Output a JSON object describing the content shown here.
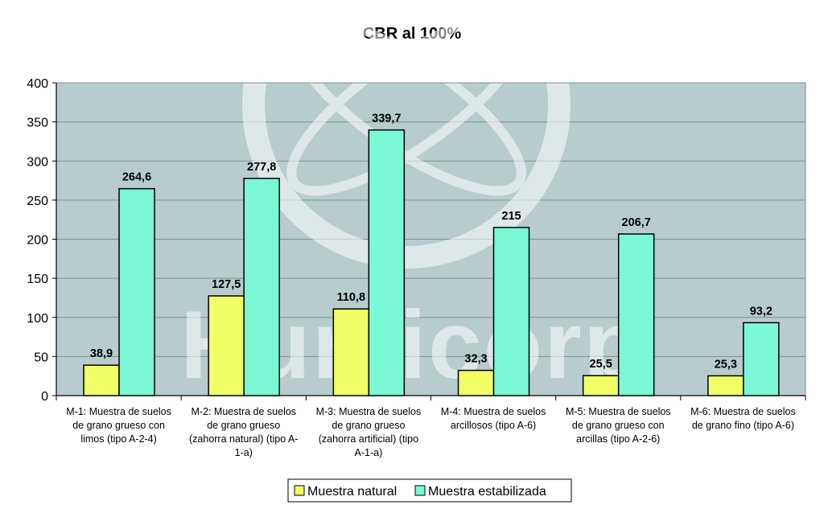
{
  "colors": {
    "plot_bg": "#b8ccce",
    "grid": "#7f8f91",
    "natural": "#f0ff66",
    "estabilizada": "#7af8d6",
    "bar_stroke": "#000000",
    "watermark": "#ffffff"
  },
  "watermark": {
    "text": "Humicorp"
  },
  "chart_data": {
    "type": "bar",
    "title": "CBR al 100%",
    "ylim": [
      0,
      400
    ],
    "yticks": [
      "0",
      "50",
      "100",
      "150",
      "200",
      "250",
      "300",
      "350",
      "400"
    ],
    "grid": true,
    "legend_position": "bottom",
    "categories": [
      [
        "M-1: Muestra de suelos",
        "de grano grueso con",
        "limos (tipo A-2-4)"
      ],
      [
        "M-2: Muestra de suelos",
        "de grano grueso",
        "(zahorra natural) (tipo A-",
        "1-a)"
      ],
      [
        "M-3: Muestra de suelos",
        "de grano grueso",
        "(zahorra artificial) (tipo",
        "A-1-a)"
      ],
      [
        "M-4: Muestra de suelos",
        "arcillosos (tipo A-6)"
      ],
      [
        "M-5: Muestra de suelos",
        "de grano grueso con",
        "arcillas (tipo A-2-6)"
      ],
      [
        "M-6: Muestra de suelos",
        "de grano fino (tipo A-6)"
      ]
    ],
    "series": [
      {
        "name": "Muestra natural",
        "values": [
          38.9,
          127.5,
          110.8,
          32.3,
          25.5,
          25.3
        ],
        "labels": [
          "38,9",
          "127,5",
          "110,8",
          "32,3",
          "25,5",
          "25,3"
        ]
      },
      {
        "name": "Muestra estabilizada",
        "values": [
          264.6,
          277.8,
          339.7,
          215,
          206.7,
          93.2
        ],
        "labels": [
          "264,6",
          "277,8",
          "339,7",
          "215",
          "206,7",
          "93,2"
        ]
      }
    ]
  }
}
